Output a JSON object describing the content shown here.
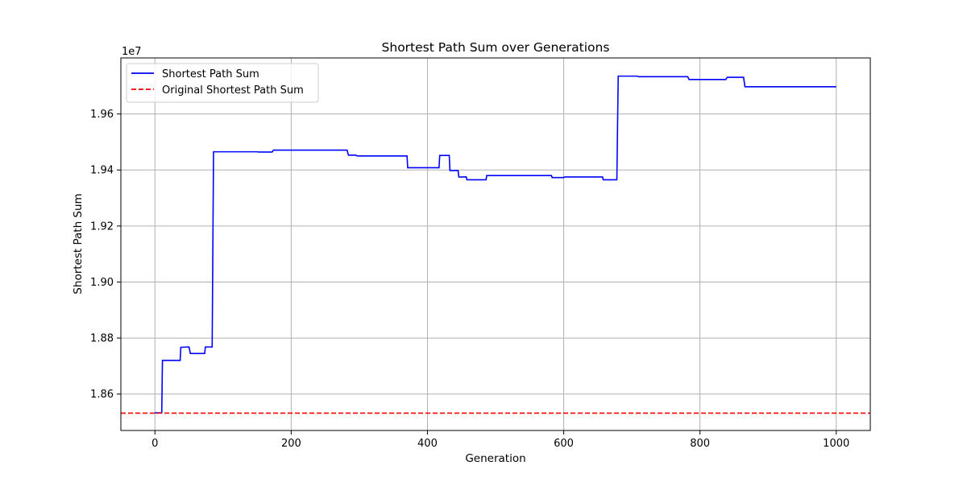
{
  "chart_data": {
    "type": "line",
    "title": "Shortest Path Sum over Generations",
    "xlabel": "Generation",
    "ylabel": "Shortest Path Sum",
    "y_offset_label": "1e7",
    "y_scale": 10000000,
    "xlim": [
      -50,
      1050
    ],
    "ylim": [
      18.47,
      19.8
    ],
    "xticks": [
      0,
      200,
      400,
      600,
      800,
      1000
    ],
    "xtick_labels": [
      "0",
      "200",
      "400",
      "600",
      "800",
      "1000"
    ],
    "yticks": [
      18.6,
      18.8,
      19.0,
      19.2,
      19.4,
      19.6
    ],
    "ytick_labels": [
      "1.86",
      "1.88",
      "1.90",
      "1.92",
      "1.94",
      "1.96"
    ],
    "grid": true,
    "legend_position": "upper-left",
    "series": [
      {
        "name": "Shortest Path Sum",
        "color": "#0000ff",
        "style": "solid",
        "x": [
          0,
          10,
          11,
          37,
          38,
          50,
          52,
          73,
          74,
          84,
          86,
          150,
          152,
          172,
          174,
          282,
          284,
          295,
          297,
          370,
          371,
          417,
          418,
          432,
          433,
          445,
          446,
          457,
          458,
          486,
          487,
          582,
          583,
          600,
          601,
          657,
          658,
          678,
          680,
          708,
          710,
          782,
          784,
          838,
          840,
          864,
          866,
          1000
        ],
        "y": [
          18.533,
          18.533,
          18.72,
          18.72,
          18.767,
          18.768,
          18.745,
          18.745,
          18.768,
          18.768,
          19.465,
          19.465,
          19.464,
          19.464,
          19.471,
          19.471,
          19.453,
          19.453,
          19.45,
          19.45,
          19.408,
          19.408,
          19.452,
          19.452,
          19.398,
          19.398,
          19.375,
          19.375,
          19.365,
          19.365,
          19.38,
          19.38,
          19.373,
          19.373,
          19.375,
          19.375,
          19.365,
          19.365,
          19.735,
          19.735,
          19.733,
          19.733,
          19.723,
          19.723,
          19.731,
          19.731,
          19.697,
          19.697
        ]
      },
      {
        "name": "Original Shortest Path Sum",
        "color": "#ff0000",
        "style": "dashed",
        "y": 18.532
      }
    ]
  }
}
